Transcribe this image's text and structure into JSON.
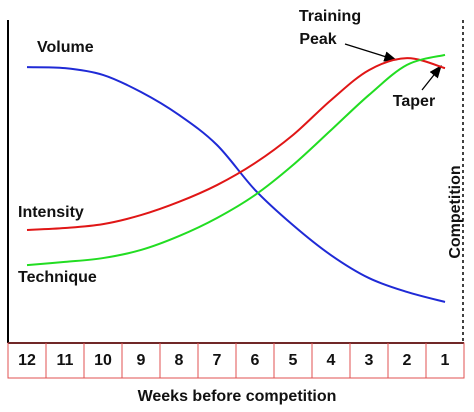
{
  "chart_data": {
    "type": "line",
    "x_label": "Weeks before competition",
    "categories": [
      "12",
      "11",
      "10",
      "9",
      "8",
      "7",
      "6",
      "5",
      "4",
      "3",
      "2",
      "1"
    ],
    "ylim": [
      0,
      100
    ],
    "series": [
      {
        "name": "Volume",
        "color": "#1f2ad6",
        "values": [
          85.4,
          85.1,
          83.0,
          77.7,
          70.6,
          61.3,
          47.4,
          36.5,
          27.2,
          20.1,
          15.8,
          12.7
        ]
      },
      {
        "name": "Intensity",
        "color": "#e01616",
        "values": [
          35.0,
          35.6,
          36.8,
          39.6,
          43.7,
          48.9,
          55.7,
          64.4,
          75.2,
          84.5,
          88.2,
          85.1
        ]
      },
      {
        "name": "Technique",
        "color": "#22dd22",
        "values": [
          24.1,
          25.1,
          26.3,
          28.8,
          33.1,
          38.7,
          45.8,
          55.1,
          65.9,
          76.8,
          86.1,
          89.2
        ]
      }
    ],
    "peak_label": [
      "Training",
      "Peak"
    ],
    "taper_label": "Taper",
    "competition_label": "Competition"
  }
}
